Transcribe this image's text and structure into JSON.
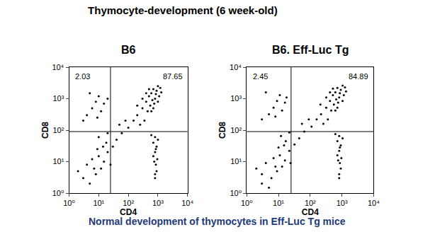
{
  "title": "Thymocyte-development (6 week-old)",
  "caption": "Normal development of thymocytes in Eff-Luc Tg mice",
  "caption_color": "#1f3a7a",
  "chart_data": [
    {
      "type": "scatter",
      "title": "B6",
      "x_label": "CD4",
      "y_label": "CD8",
      "log": true,
      "color": "#000000",
      "marker": "dot",
      "xlim": [
        1,
        10000
      ],
      "ylim": [
        1,
        10000
      ],
      "xticks": [
        {
          "value": 1,
          "label": "10⁰"
        },
        {
          "value": 10,
          "label": "10¹"
        },
        {
          "value": 100,
          "label": "10²"
        },
        {
          "value": 1000,
          "label": "10³"
        },
        {
          "value": 10000,
          "label": "10⁴"
        }
      ],
      "yticks": [
        {
          "value": 1,
          "label": "10⁰"
        },
        {
          "value": 10,
          "label": "10¹"
        },
        {
          "value": 100,
          "label": "10²"
        },
        {
          "value": 1000,
          "label": "10³"
        },
        {
          "value": 10000,
          "label": "10⁴"
        }
      ],
      "quadrant_x": 25,
      "quadrant_y": 90,
      "annotations": [
        "2.03",
        "87.65"
      ],
      "x": [
        3,
        5,
        8,
        12,
        4,
        6,
        10,
        15,
        20,
        2,
        7,
        9,
        14,
        25,
        18,
        4,
        6,
        8,
        10,
        5,
        12,
        15,
        20,
        3,
        9,
        30,
        40,
        60,
        50,
        80,
        100,
        200,
        300,
        400,
        500,
        600,
        700,
        800,
        900,
        1000,
        250,
        350,
        450,
        550,
        650,
        750,
        850,
        1100,
        1200,
        300,
        400,
        500,
        600,
        700,
        150,
        200,
        1000,
        1300,
        800,
        700,
        900,
        800,
        750,
        850,
        900,
        800,
        700,
        1000,
        600,
        950,
        800,
        850,
        10,
        20
      ],
      "values": [
        3,
        2,
        4,
        6,
        8,
        12,
        15,
        10,
        20,
        5,
        6,
        25,
        30,
        8,
        40,
        300,
        500,
        800,
        1200,
        1500,
        400,
        700,
        1000,
        200,
        250,
        30,
        50,
        80,
        150,
        200,
        120,
        300,
        500,
        800,
        1200,
        1500,
        2000,
        1000,
        1800,
        2500,
        150,
        200,
        400,
        600,
        900,
        700,
        1400,
        1200,
        2200,
        1000,
        1500,
        2000,
        400,
        500,
        200,
        600,
        800,
        1600,
        60,
        40,
        30,
        20,
        10,
        8,
        5,
        4,
        15,
        50,
        70,
        12,
        3,
        25,
        60,
        80
      ]
    },
    {
      "type": "scatter",
      "title": "B6. Eff-Luc Tg",
      "x_label": "CD4",
      "y_label": "CD8",
      "log": true,
      "color": "#000000",
      "marker": "dot",
      "xlim": [
        1,
        10000
      ],
      "ylim": [
        1,
        10000
      ],
      "xticks": [
        {
          "value": 1,
          "label": "10⁰"
        },
        {
          "value": 10,
          "label": "10¹"
        },
        {
          "value": 100,
          "label": "10²"
        },
        {
          "value": 1000,
          "label": "10³"
        },
        {
          "value": 10000,
          "label": "10⁴"
        }
      ],
      "yticks": [
        {
          "value": 1,
          "label": "10⁰"
        },
        {
          "value": 10,
          "label": "10¹"
        },
        {
          "value": 100,
          "label": "10²"
        },
        {
          "value": 1000,
          "label": "10³"
        },
        {
          "value": 10000,
          "label": "10⁴"
        }
      ],
      "quadrant_x": 25,
      "quadrant_y": 90,
      "annotations": [
        "2.45",
        "84.89"
      ],
      "x": [
        3,
        6,
        9,
        13,
        4,
        7,
        11,
        16,
        22,
        2,
        8,
        10,
        15,
        24,
        17,
        5,
        7,
        9,
        11,
        4,
        13,
        16,
        18,
        3,
        8,
        32,
        45,
        65,
        55,
        90,
        110,
        220,
        320,
        420,
        520,
        620,
        720,
        820,
        920,
        1050,
        260,
        360,
        460,
        560,
        660,
        760,
        860,
        1150,
        1250,
        320,
        420,
        520,
        620,
        720,
        160,
        210,
        1050,
        1350,
        820,
        720,
        920,
        820,
        760,
        860,
        920,
        820,
        720,
        1050,
        620,
        960,
        820,
        860,
        12,
        22,
        3,
        5
      ],
      "values": [
        4,
        3,
        5,
        7,
        9,
        13,
        16,
        11,
        22,
        6,
        7,
        28,
        33,
        9,
        45,
        320,
        520,
        850,
        1300,
        1600,
        420,
        750,
        1100,
        220,
        270,
        35,
        55,
        90,
        160,
        220,
        130,
        320,
        520,
        850,
        1300,
        1600,
        2200,
        1100,
        1900,
        2600,
        160,
        220,
        420,
        650,
        950,
        750,
        1500,
        1300,
        2300,
        1100,
        1600,
        2100,
        420,
        520,
        220,
        650,
        850,
        1700,
        65,
        45,
        33,
        22,
        11,
        9,
        6,
        4,
        16,
        55,
        75,
        13,
        3,
        28,
        65,
        85,
        2,
        1.5
      ]
    }
  ]
}
